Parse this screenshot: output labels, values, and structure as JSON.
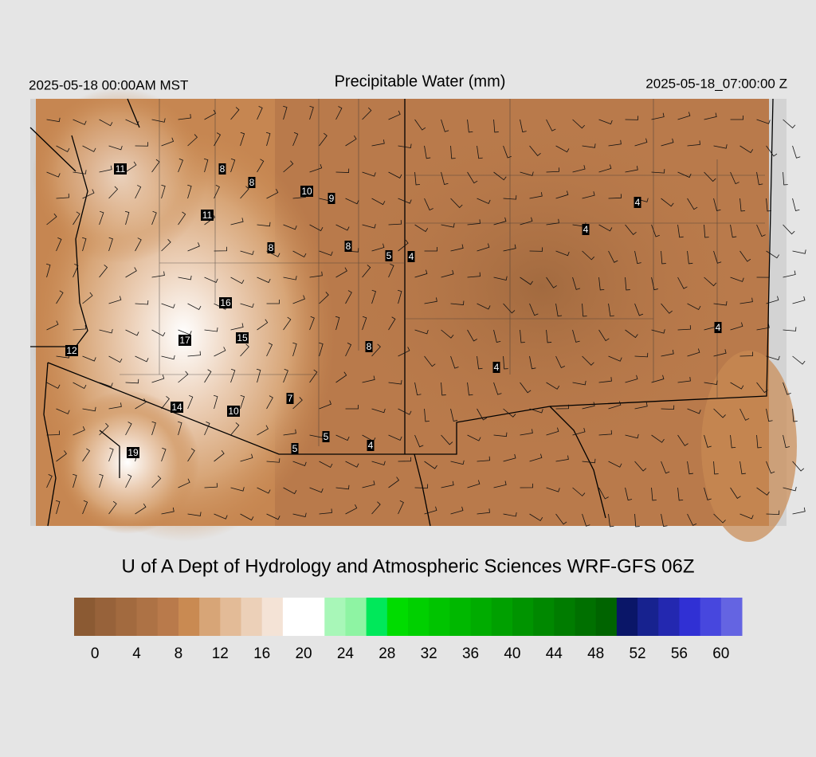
{
  "header": {
    "left": "2025-05-18 00:00AM MST",
    "title": "Precipitable Water (mm)",
    "right": "2025-05-18_07:00:00 Z"
  },
  "credit": "U of A Dept of Hydrology and Atmospheric Sciences WRF-GFS 06Z",
  "station_values": [
    11,
    8,
    8,
    10,
    9,
    11,
    8,
    8,
    5,
    4,
    4,
    4,
    16,
    15,
    17,
    12,
    8,
    4,
    4,
    7,
    14,
    10,
    5,
    4,
    5,
    19
  ],
  "colorbar": {
    "range": [
      -2,
      62
    ],
    "step": 2,
    "colors": [
      "#8b5a33",
      "#97623a",
      "#a26a3f",
      "#ad7245",
      "#b97a4b",
      "#c98a52",
      "#d7a577",
      "#e3bb97",
      "#ecd0b8",
      "#f4e3d6",
      "#ffffff",
      "#ffffff",
      "#a8f7b8",
      "#8ef4a3",
      "#00e85a",
      "#00dc00",
      "#00d000",
      "#00c400",
      "#00b800",
      "#00ac00",
      "#00a000",
      "#009400",
      "#008800",
      "#007c00",
      "#007000",
      "#006400",
      "#0a1668",
      "#17228f",
      "#2328b0",
      "#3030d4",
      "#4747de",
      "#6464e2"
    ],
    "ticks": [
      0,
      4,
      8,
      12,
      16,
      20,
      24,
      28,
      32,
      36,
      40,
      44,
      48,
      52,
      56,
      60
    ]
  }
}
